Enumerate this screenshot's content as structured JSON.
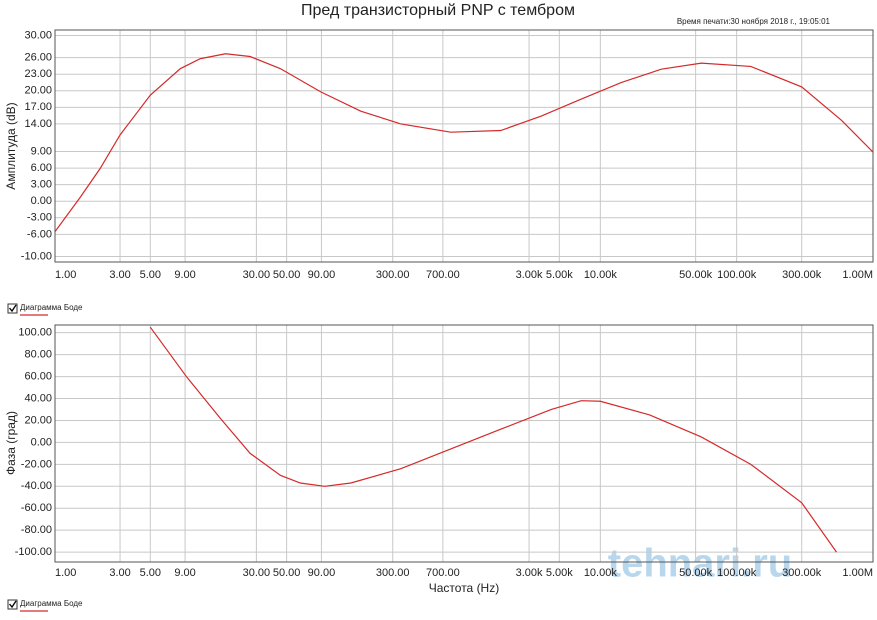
{
  "chart_data": [
    {
      "type": "line",
      "title": "Пред транзисторный PNP с тембром",
      "timestamp": "Время печати:30 ноября 2018 г., 19:05:01",
      "y_label": "Амплитуда (dB)",
      "x_log": true,
      "grid": true,
      "xlim": [
        1,
        1000000
      ],
      "ylim": [
        -11,
        31
      ],
      "xticks": [
        {
          "value": 1,
          "label": "1.00"
        },
        {
          "value": 3,
          "label": "3.00"
        },
        {
          "value": 5,
          "label": "5.00"
        },
        {
          "value": 9,
          "label": "9.00"
        },
        {
          "value": 30,
          "label": "30.00"
        },
        {
          "value": 50,
          "label": "50.00"
        },
        {
          "value": 90,
          "label": "90.00"
        },
        {
          "value": 300,
          "label": "300.00"
        },
        {
          "value": 700,
          "label": "700.00"
        },
        {
          "value": 3000,
          "label": "3.00k"
        },
        {
          "value": 5000,
          "label": "5.00k"
        },
        {
          "value": 10000,
          "label": "10.00k"
        },
        {
          "value": 50000,
          "label": "50.00k"
        },
        {
          "value": 100000,
          "label": "100.00k"
        },
        {
          "value": 300000,
          "label": "300.00k"
        },
        {
          "value": 1000000,
          "label": "1.00M"
        }
      ],
      "yticks": [
        {
          "value": 30,
          "label": "30.00"
        },
        {
          "value": 26,
          "label": "26.00"
        },
        {
          "value": 23,
          "label": "23.00"
        },
        {
          "value": 20,
          "label": "20.00"
        },
        {
          "value": 17,
          "label": "17.00"
        },
        {
          "value": 14,
          "label": "14.00"
        },
        {
          "value": 9,
          "label": "9.00"
        },
        {
          "value": 6,
          "label": "6.00"
        },
        {
          "value": 3,
          "label": "3.00"
        },
        {
          "value": 0,
          "label": "0.00"
        },
        {
          "value": -3,
          "label": "-3.00"
        },
        {
          "value": -6,
          "label": "-6.00"
        },
        {
          "value": -10,
          "label": "-10.00"
        }
      ],
      "x": [
        1,
        1.53,
        2.14,
        3,
        5,
        8.3,
        11.6,
        17.8,
        27,
        45,
        89,
        175,
        344,
        800,
        1860,
        3670,
        7250,
        14300,
        28000,
        55000,
        127000,
        300000,
        590000,
        1000000
      ],
      "series": [
        {
          "name": "Диаграмма Боде",
          "color": "#d42a2a",
          "values": [
            -5.5,
            0.7,
            5.9,
            12,
            19.2,
            24,
            25.8,
            26.7,
            26.2,
            24,
            19.8,
            16.3,
            14,
            12.5,
            12.8,
            15.4,
            18.5,
            21.5,
            23.9,
            25,
            24.4,
            20.7,
            14.6,
            8.9
          ]
        }
      ]
    },
    {
      "type": "line",
      "y_label": "Фаза (град)",
      "x_label": "Частота (Hz)",
      "watermark": "tehnari.ru",
      "x_log": true,
      "grid": true,
      "xlim": [
        1,
        1000000
      ],
      "ylim": [
        -109,
        107
      ],
      "xticks": [
        {
          "value": 1,
          "label": "1.00"
        },
        {
          "value": 3,
          "label": "3.00"
        },
        {
          "value": 5,
          "label": "5.00"
        },
        {
          "value": 9,
          "label": "9.00"
        },
        {
          "value": 30,
          "label": "30.00"
        },
        {
          "value": 50,
          "label": "50.00"
        },
        {
          "value": 90,
          "label": "90.00"
        },
        {
          "value": 300,
          "label": "300.00"
        },
        {
          "value": 700,
          "label": "700.00"
        },
        {
          "value": 3000,
          "label": "3.00k"
        },
        {
          "value": 5000,
          "label": "5.00k"
        },
        {
          "value": 10000,
          "label": "10.00k"
        },
        {
          "value": 50000,
          "label": "50.00k"
        },
        {
          "value": 100000,
          "label": "100.00k"
        },
        {
          "value": 300000,
          "label": "300.00k"
        },
        {
          "value": 1000000,
          "label": "1.00M"
        }
      ],
      "yticks": [
        {
          "value": 100,
          "label": "100.00"
        },
        {
          "value": 80,
          "label": "80.00"
        },
        {
          "value": 60,
          "label": "60.00"
        },
        {
          "value": 40,
          "label": "40.00"
        },
        {
          "value": 20,
          "label": "20.00"
        },
        {
          "value": 0,
          "label": "0.00"
        },
        {
          "value": -20,
          "label": "-20.00"
        },
        {
          "value": -40,
          "label": "-40.00"
        },
        {
          "value": -60,
          "label": "-60.00"
        },
        {
          "value": -80,
          "label": "-80.00"
        },
        {
          "value": -100,
          "label": "-100.00"
        }
      ],
      "x": [
        5,
        9.2,
        16.3,
        27,
        45,
        63,
        95,
        148,
        344,
        800,
        1860,
        4370,
        7250,
        10000,
        23000,
        55000,
        127000,
        300000,
        540000
      ],
      "series": [
        {
          "name": "Диаграмма Боде",
          "color": "#d42a2a",
          "values": [
            105,
            60,
            22,
            -10,
            -30,
            -37,
            -40,
            -37,
            -24,
            -6,
            12,
            30,
            38,
            37.5,
            25,
            5,
            -20,
            -55,
            -100
          ]
        }
      ]
    }
  ]
}
